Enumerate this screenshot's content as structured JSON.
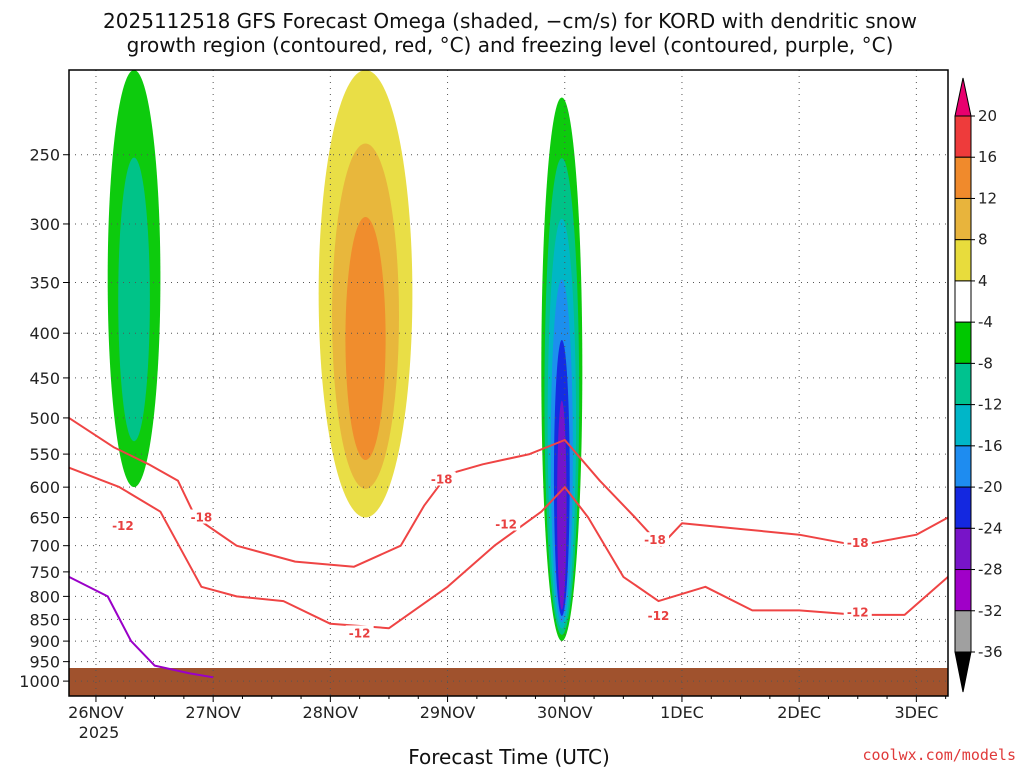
{
  "chart_data": {
    "type": "heatmap",
    "title_line1": "2025112518 GFS Forecast Omega (shaded, −cm/s) for KORD with dendritic snow",
    "title_line2": "growth region (contoured, red, °C) and freezing level (contoured, purple, °C)",
    "xlabel": "Forecast Time (UTC)",
    "ylabel": "",
    "year_label": "2025",
    "credit": "coolwx.com/models",
    "x_ticks": [
      {
        "label": "26NOV",
        "day": 0
      },
      {
        "label": "27NOV",
        "day": 1
      },
      {
        "label": "28NOV",
        "day": 2
      },
      {
        "label": "29NOV",
        "day": 3
      },
      {
        "label": "30NOV",
        "day": 4
      },
      {
        "label": "1DEC",
        "day": 5
      },
      {
        "label": "2DEC",
        "day": 6
      },
      {
        "label": "3DEC",
        "day": 7
      }
    ],
    "xlim_days": [
      -0.23,
      7.27
    ],
    "y_ticks": [
      250,
      300,
      350,
      400,
      450,
      500,
      550,
      600,
      650,
      700,
      750,
      800,
      850,
      900,
      950,
      1000
    ],
    "ylim_hpa": [
      200,
      1040
    ],
    "ground_level_hpa": 1005,
    "colorbar": {
      "levels": [
        20,
        16,
        12,
        8,
        4,
        -4,
        -8,
        -12,
        -16,
        -20,
        -24,
        -28,
        -32,
        -36
      ],
      "colors": [
        "#e8006e",
        "#ee3b3b",
        "#f08a2c",
        "#e8b43c",
        "#e8dc3c",
        "#ffffff",
        "#00c800",
        "#00c28f",
        "#00b6c8",
        "#1e8cf0",
        "#1428e0",
        "#7814c8",
        "#a000c8",
        "#a0a0a0",
        "#000000"
      ]
    },
    "contour_labels": [
      {
        "text": "-18",
        "day": 0.9,
        "p": 650
      },
      {
        "text": "-12",
        "day": 0.23,
        "p": 665
      },
      {
        "text": "-18",
        "day": 2.95,
        "p": 588
      },
      {
        "text": "-12",
        "day": 2.25,
        "p": 882
      },
      {
        "text": "-12",
        "day": 3.5,
        "p": 662
      },
      {
        "text": "-18",
        "day": 4.77,
        "p": 690
      },
      {
        "text": "-12",
        "day": 4.8,
        "p": 842
      },
      {
        "text": "-18",
        "day": 6.5,
        "p": 695
      },
      {
        "text": "-12",
        "day": 6.5,
        "p": 835
      }
    ],
    "minus18_contour": [
      [
        -0.23,
        500
      ],
      [
        0.15,
        540
      ],
      [
        0.45,
        565
      ],
      [
        0.7,
        590
      ],
      [
        0.85,
        650
      ],
      [
        1.2,
        700
      ],
      [
        1.7,
        730
      ],
      [
        2.2,
        740
      ],
      [
        2.6,
        700
      ],
      [
        2.8,
        630
      ],
      [
        3.0,
        580
      ],
      [
        3.3,
        565
      ],
      [
        3.7,
        550
      ],
      [
        4.0,
        530
      ],
      [
        4.3,
        590
      ],
      [
        4.6,
        650
      ],
      [
        4.82,
        700
      ],
      [
        5.0,
        660
      ],
      [
        5.5,
        670
      ],
      [
        6.0,
        680
      ],
      [
        6.5,
        700
      ],
      [
        7.0,
        680
      ],
      [
        7.27,
        650
      ]
    ],
    "minus12_contour": [
      [
        -0.23,
        570
      ],
      [
        0.2,
        600
      ],
      [
        0.55,
        640
      ],
      [
        0.9,
        780
      ],
      [
        1.2,
        800
      ],
      [
        1.6,
        810
      ],
      [
        2.0,
        860
      ],
      [
        2.5,
        870
      ],
      [
        3.0,
        780
      ],
      [
        3.4,
        700
      ],
      [
        3.8,
        640
      ],
      [
        4.0,
        600
      ],
      [
        4.2,
        650
      ],
      [
        4.5,
        760
      ],
      [
        4.8,
        810
      ],
      [
        5.2,
        780
      ],
      [
        5.6,
        830
      ],
      [
        6.0,
        830
      ],
      [
        6.5,
        840
      ],
      [
        6.9,
        840
      ],
      [
        7.27,
        760
      ]
    ],
    "freezing_level_contour": [
      [
        -0.23,
        760
      ],
      [
        0.1,
        800
      ],
      [
        0.3,
        900
      ],
      [
        0.5,
        960
      ],
      [
        0.8,
        980
      ],
      [
        1.0,
        990
      ]
    ],
    "omega_regions": [
      {
        "day_from": 3.8,
        "day_to": 4.15,
        "p_top": 215,
        "p_bottom": 900,
        "peak": -24
      },
      {
        "day_from": 0.1,
        "day_to": 0.55,
        "p_top": 200,
        "p_bottom": 600,
        "peak": -8
      },
      {
        "day_from": 1.9,
        "day_to": 2.7,
        "p_top": 200,
        "p_bottom": 650,
        "peak": 12
      }
    ]
  }
}
